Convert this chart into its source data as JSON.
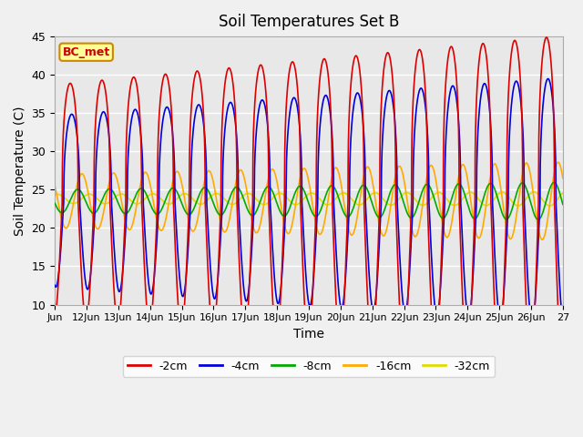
{
  "title": "Soil Temperatures Set B",
  "xlabel": "Time",
  "ylabel": "Soil Temperature (C)",
  "annotation": "BC_met",
  "ylim": [
    10,
    45
  ],
  "yticks": [
    10,
    15,
    20,
    25,
    30,
    35,
    40,
    45
  ],
  "x_labels": [
    "Jun",
    "12Jun",
    "13Jun",
    "14Jun",
    "15Jun",
    "16Jun",
    "17Jun",
    "18Jun",
    "19Jun",
    "20Jun",
    "21Jun",
    "22Jun",
    "23Jun",
    "24Jun",
    "25Jun",
    "26Jun",
    "27"
  ],
  "series_colors": [
    "#dd0000",
    "#0000dd",
    "#00aa00",
    "#ffaa00",
    "#dddd00"
  ],
  "series_labels": [
    "-2cm",
    "-4cm",
    "-8cm",
    "-16cm",
    "-32cm"
  ],
  "bg_color": "#e8e8e8",
  "grid_color": "#ffffff",
  "annotation_bg": "#ffff99",
  "annotation_border": "#cc8800",
  "fig_bg": "#f0f0f0"
}
